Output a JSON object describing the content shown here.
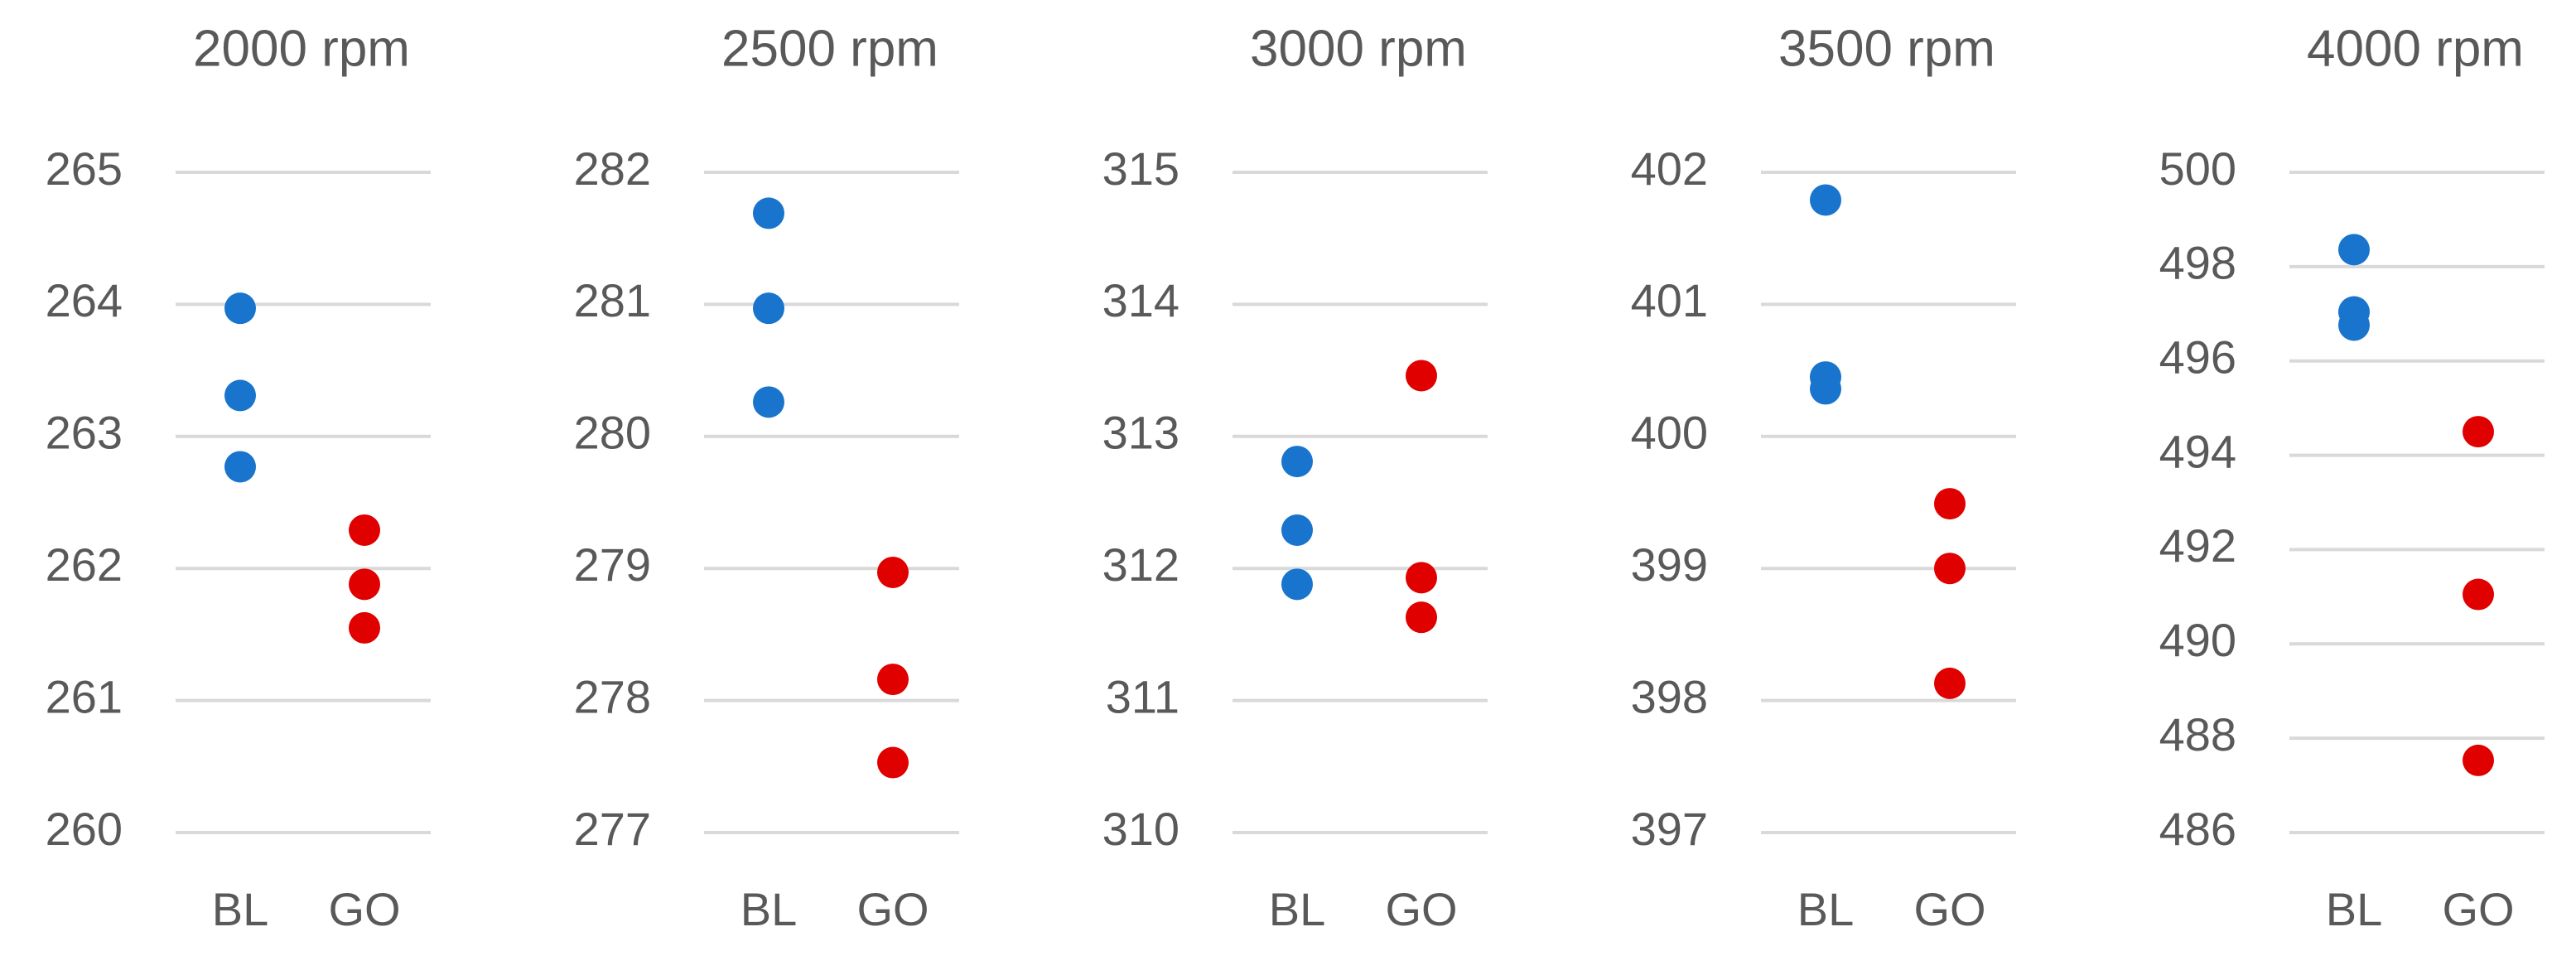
{
  "chart_data": [
    {
      "type": "strip",
      "title": "2000 rpm",
      "categories": [
        "BL",
        "GO"
      ],
      "colors": [
        "#1874cd",
        "#e00000"
      ],
      "values": [
        [
          263.97,
          263.31,
          262.77
        ],
        [
          262.29,
          261.88,
          261.55
        ]
      ],
      "ylim": [
        260,
        265
      ],
      "yticks": [
        260,
        261,
        262,
        263,
        264,
        265
      ],
      "grid": true
    },
    {
      "type": "strip",
      "title": "2500 rpm",
      "categories": [
        "BL",
        "GO"
      ],
      "colors": [
        "#1874cd",
        "#e00000"
      ],
      "values": [
        [
          281.69,
          280.97,
          280.26
        ],
        [
          278.97,
          278.16,
          277.53
        ]
      ],
      "ylim": [
        277,
        282
      ],
      "yticks": [
        277,
        278,
        279,
        280,
        281,
        282
      ],
      "grid": true
    },
    {
      "type": "strip",
      "title": "3000 rpm",
      "categories": [
        "BL",
        "GO"
      ],
      "colors": [
        "#1874cd",
        "#e00000"
      ],
      "values": [
        [
          312.81,
          312.29,
          311.88
        ],
        [
          313.46,
          311.93,
          311.63
        ]
      ],
      "ylim": [
        310,
        315
      ],
      "yticks": [
        310,
        311,
        312,
        313,
        314,
        315
      ],
      "grid": true
    },
    {
      "type": "strip",
      "title": "3500 rpm",
      "categories": [
        "BL",
        "GO"
      ],
      "colors": [
        "#1874cd",
        "#e00000"
      ],
      "values": [
        [
          401.79,
          400.45,
          400.36
        ],
        [
          399.49,
          399.0,
          398.13
        ]
      ],
      "ylim": [
        397,
        402
      ],
      "yticks": [
        397,
        398,
        399,
        400,
        401,
        402
      ],
      "grid": true
    },
    {
      "type": "strip",
      "title": "4000 rpm",
      "categories": [
        "BL",
        "GO"
      ],
      "colors": [
        "#1874cd",
        "#e00000"
      ],
      "values": [
        [
          498.36,
          497.04,
          496.76
        ],
        [
          494.5,
          491.05,
          487.53
        ]
      ],
      "ylim": [
        486,
        500
      ],
      "yticks": [
        486,
        488,
        490,
        492,
        494,
        496,
        498,
        500
      ],
      "grid": true
    }
  ]
}
